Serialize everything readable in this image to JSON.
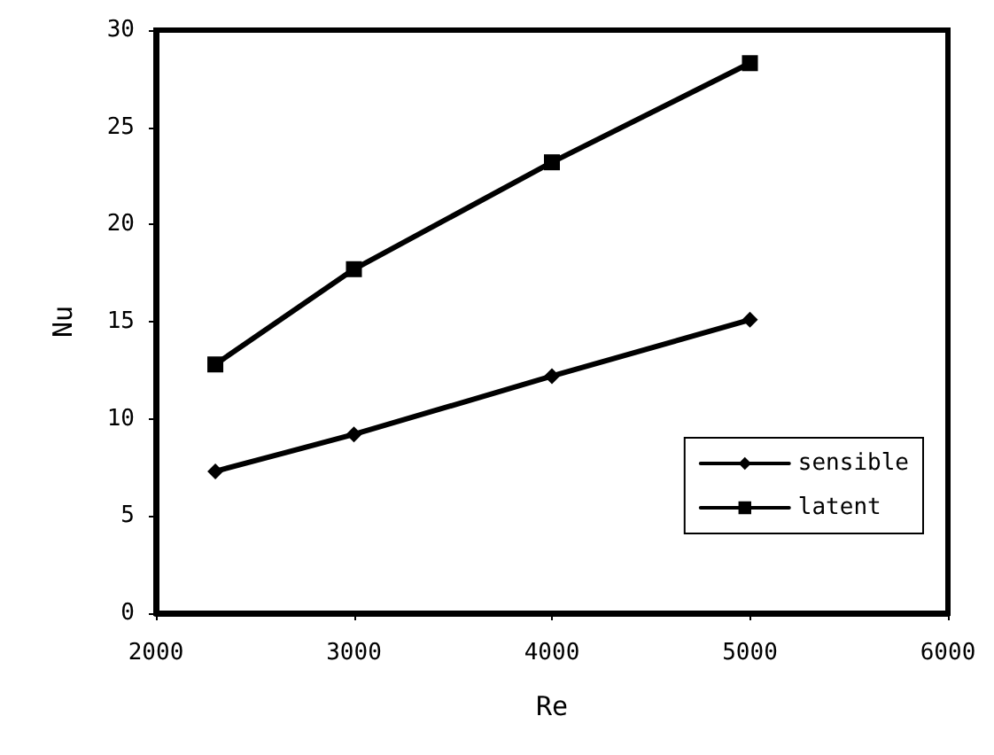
{
  "chart_data": {
    "type": "line",
    "xlabel": "Re",
    "ylabel": "Nu",
    "x": [
      2300,
      3000,
      4000,
      5000
    ],
    "series": [
      {
        "name": "sensible",
        "color": "#000000",
        "marker": "diamond",
        "values": [
          7.3,
          9.2,
          12.2,
          15.1
        ]
      },
      {
        "name": "latent",
        "color": "#000000",
        "marker": "square",
        "values": [
          12.8,
          17.7,
          23.2,
          28.3
        ]
      }
    ],
    "xlim": [
      2000,
      6000
    ],
    "xticks": [
      2000,
      3000,
      4000,
      5000,
      6000
    ],
    "ylim": [
      0,
      30
    ],
    "yticks": [
      0,
      5,
      10,
      15,
      20,
      25,
      30
    ],
    "grid": false,
    "legend": "bottom right",
    "line_style": "solid"
  }
}
